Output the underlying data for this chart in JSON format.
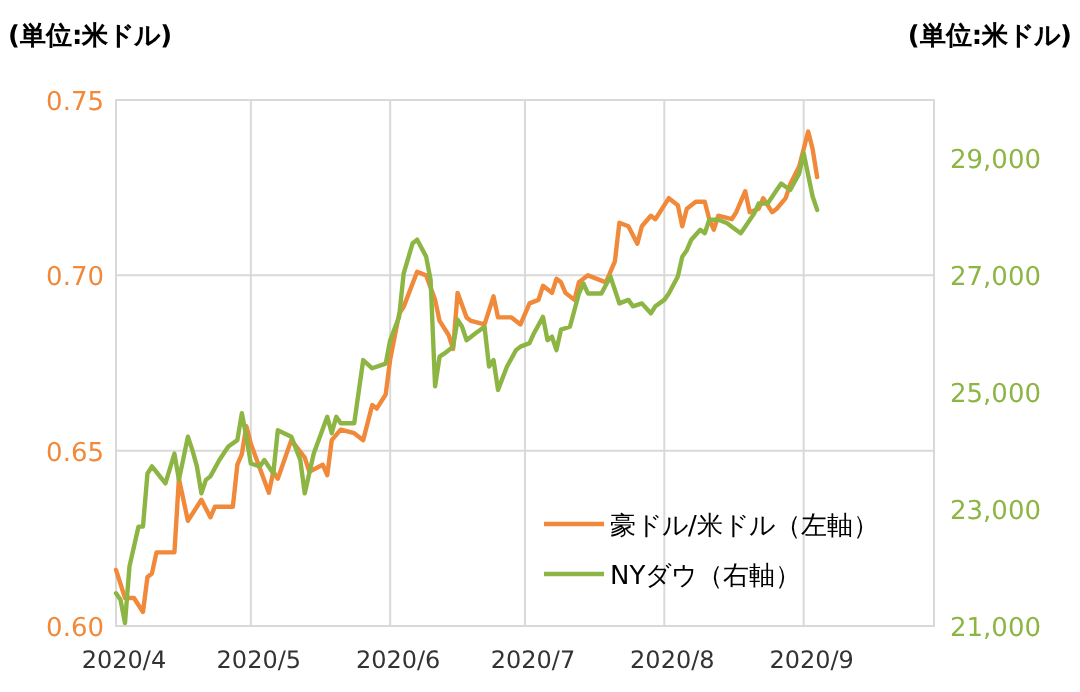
{
  "chart_data": {
    "type": "line",
    "ylabel": "(単位:米ドル)",
    "y2label": "(単位:米ドル)",
    "xlim": [
      "2020-04-01",
      "2020-09-30"
    ],
    "xticks": [
      {
        "value": "2020-04-01",
        "label": "2020/4"
      },
      {
        "value": "2020-05-01",
        "label": "2020/5"
      },
      {
        "value": "2020-06-01",
        "label": "2020/6"
      },
      {
        "value": "2020-07-01",
        "label": "2020/7"
      },
      {
        "value": "2020-08-01",
        "label": "2020/8"
      },
      {
        "value": "2020-09-01",
        "label": "2020/9"
      }
    ],
    "ylim": [
      0.6,
      0.75
    ],
    "yticks": [
      {
        "value": 0.6,
        "label": "0.60"
      },
      {
        "value": 0.65,
        "label": "0.65"
      },
      {
        "value": 0.7,
        "label": "0.70"
      },
      {
        "value": 0.75,
        "label": "0.75"
      }
    ],
    "y2lim": [
      21000,
      30000
    ],
    "y2ticks": [
      {
        "value": 21000,
        "label": "21,000"
      },
      {
        "value": 23000,
        "label": "23,000"
      },
      {
        "value": 25000,
        "label": "25,000"
      },
      {
        "value": 27000,
        "label": "27,000"
      },
      {
        "value": 29000,
        "label": "29,000"
      }
    ],
    "grid": true,
    "legend": "bottom right",
    "marker": "none",
    "series": [
      {
        "name": "豪ドル/米ドル（左軸）",
        "color": "#f0893a",
        "axis": "y",
        "x": [
          "2020-04-01",
          "2020-04-03",
          "2020-04-05",
          "2020-04-07",
          "2020-04-08",
          "2020-04-09",
          "2020-04-10",
          "2020-04-14",
          "2020-04-15",
          "2020-04-17",
          "2020-04-20",
          "2020-04-22",
          "2020-04-23",
          "2020-04-27",
          "2020-04-28",
          "2020-04-29",
          "2020-04-30",
          "2020-05-01",
          "2020-05-03",
          "2020-05-05",
          "2020-05-06",
          "2020-05-07",
          "2020-05-10",
          "2020-05-13",
          "2020-05-14",
          "2020-05-17",
          "2020-05-18",
          "2020-05-19",
          "2020-05-21",
          "2020-05-24",
          "2020-05-26",
          "2020-05-28",
          "2020-05-29",
          "2020-05-31",
          "2020-06-01",
          "2020-06-03",
          "2020-06-04",
          "2020-06-07",
          "2020-06-09",
          "2020-06-11",
          "2020-06-12",
          "2020-06-14",
          "2020-06-15",
          "2020-06-16",
          "2020-06-18",
          "2020-06-19",
          "2020-06-22",
          "2020-06-24",
          "2020-06-25",
          "2020-06-28",
          "2020-06-30",
          "2020-07-02",
          "2020-07-04",
          "2020-07-05",
          "2020-07-07",
          "2020-07-08",
          "2020-07-09",
          "2020-07-10",
          "2020-07-12",
          "2020-07-13",
          "2020-07-15",
          "2020-07-19",
          "2020-07-21",
          "2020-07-22",
          "2020-07-24",
          "2020-07-26",
          "2020-07-27",
          "2020-07-29",
          "2020-07-30",
          "2020-08-02",
          "2020-08-04",
          "2020-08-05",
          "2020-08-06",
          "2020-08-08",
          "2020-08-10",
          "2020-08-11",
          "2020-08-12",
          "2020-08-13",
          "2020-08-16",
          "2020-08-17",
          "2020-08-19",
          "2020-08-20",
          "2020-08-22",
          "2020-08-23",
          "2020-08-25",
          "2020-08-26",
          "2020-08-28",
          "2020-08-29",
          "2020-08-31",
          "2020-09-02",
          "2020-09-03",
          "2020-09-04"
        ],
        "values": [
          0.616,
          0.608,
          0.608,
          0.604,
          0.614,
          0.615,
          0.621,
          0.621,
          0.642,
          0.63,
          0.636,
          0.631,
          0.634,
          0.634,
          0.646,
          0.649,
          0.657,
          0.652,
          0.645,
          0.638,
          0.644,
          0.642,
          0.653,
          0.648,
          0.644,
          0.646,
          0.643,
          0.653,
          0.656,
          0.655,
          0.653,
          0.663,
          0.662,
          0.666,
          0.676,
          0.689,
          0.691,
          0.701,
          0.7,
          0.693,
          0.687,
          0.683,
          0.679,
          0.695,
          0.688,
          0.687,
          0.686,
          0.694,
          0.688,
          0.688,
          0.686,
          0.692,
          0.693,
          0.697,
          0.695,
          0.699,
          0.698,
          0.695,
          0.693,
          0.698,
          0.7,
          0.698,
          0.704,
          0.715,
          0.714,
          0.709,
          0.714,
          0.717,
          0.716,
          0.722,
          0.72,
          0.714,
          0.719,
          0.721,
          0.721,
          0.716,
          0.713,
          0.717,
          0.716,
          0.718,
          0.724,
          0.718,
          0.719,
          0.722,
          0.718,
          0.719,
          0.722,
          0.726,
          0.731,
          0.741,
          0.736,
          0.728
        ]
      },
      {
        "name": "NYダウ（右軸）",
        "color": "#8db544",
        "axis": "y2",
        "x": [
          "2020-04-01",
          "2020-04-02",
          "2020-04-03",
          "2020-04-04",
          "2020-04-06",
          "2020-04-07",
          "2020-04-08",
          "2020-04-09",
          "2020-04-12",
          "2020-04-14",
          "2020-04-15",
          "2020-04-17",
          "2020-04-18",
          "2020-04-19",
          "2020-04-20",
          "2020-04-21",
          "2020-04-22",
          "2020-04-24",
          "2020-04-26",
          "2020-04-28",
          "2020-04-29",
          "2020-04-30",
          "2020-05-01",
          "2020-05-03",
          "2020-05-04",
          "2020-05-06",
          "2020-05-07",
          "2020-05-10",
          "2020-05-12",
          "2020-05-13",
          "2020-05-14",
          "2020-05-15",
          "2020-05-18",
          "2020-05-19",
          "2020-05-20",
          "2020-05-21",
          "2020-05-24",
          "2020-05-26",
          "2020-05-28",
          "2020-05-31",
          "2020-06-01",
          "2020-06-03",
          "2020-06-04",
          "2020-06-06",
          "2020-06-07",
          "2020-06-09",
          "2020-06-10",
          "2020-06-11",
          "2020-06-12",
          "2020-06-13",
          "2020-06-15",
          "2020-06-16",
          "2020-06-17",
          "2020-06-18",
          "2020-06-20",
          "2020-06-22",
          "2020-06-23",
          "2020-06-24",
          "2020-06-25",
          "2020-06-27",
          "2020-06-29",
          "2020-06-30",
          "2020-07-02",
          "2020-07-03",
          "2020-07-05",
          "2020-07-06",
          "2020-07-07",
          "2020-07-08",
          "2020-07-09",
          "2020-07-11",
          "2020-07-13",
          "2020-07-14",
          "2020-07-15",
          "2020-07-18",
          "2020-07-20",
          "2020-07-22",
          "2020-07-24",
          "2020-07-25",
          "2020-07-27",
          "2020-07-29",
          "2020-07-30",
          "2020-08-01",
          "2020-08-02",
          "2020-08-04",
          "2020-08-05",
          "2020-08-06",
          "2020-08-07",
          "2020-08-09",
          "2020-08-10",
          "2020-08-11",
          "2020-08-13",
          "2020-08-15",
          "2020-08-16",
          "2020-08-18",
          "2020-08-19",
          "2020-08-21",
          "2020-08-22",
          "2020-08-24",
          "2020-08-26",
          "2020-08-27",
          "2020-08-29",
          "2020-08-31",
          "2020-09-01",
          "2020-09-03",
          "2020-09-04"
        ],
        "values": [
          21560,
          21450,
          21050,
          22020,
          22700,
          22700,
          23610,
          23730,
          23440,
          23950,
          23500,
          24240,
          24010,
          23730,
          23270,
          23500,
          23560,
          23840,
          24070,
          24180,
          24640,
          24240,
          23780,
          23730,
          23840,
          23610,
          24350,
          24240,
          23840,
          23270,
          23610,
          23950,
          24580,
          24300,
          24580,
          24470,
          24470,
          25550,
          25410,
          25490,
          25890,
          26290,
          27030,
          27550,
          27610,
          27320,
          26920,
          25100,
          25610,
          25660,
          25780,
          26240,
          26120,
          25890,
          26010,
          26120,
          25440,
          25550,
          25040,
          25440,
          25720,
          25780,
          25840,
          26010,
          26290,
          25890,
          25950,
          25720,
          26070,
          26120,
          26690,
          26860,
          26690,
          26690,
          26980,
          26520,
          26580,
          26470,
          26520,
          26350,
          26470,
          26580,
          26690,
          26980,
          27320,
          27430,
          27610,
          27780,
          27720,
          27950,
          27950,
          27890,
          27830,
          27720,
          27830,
          28060,
          28230,
          28230,
          28460,
          28570,
          28460,
          28740,
          29090,
          28350,
          28120
        ]
      }
    ]
  }
}
